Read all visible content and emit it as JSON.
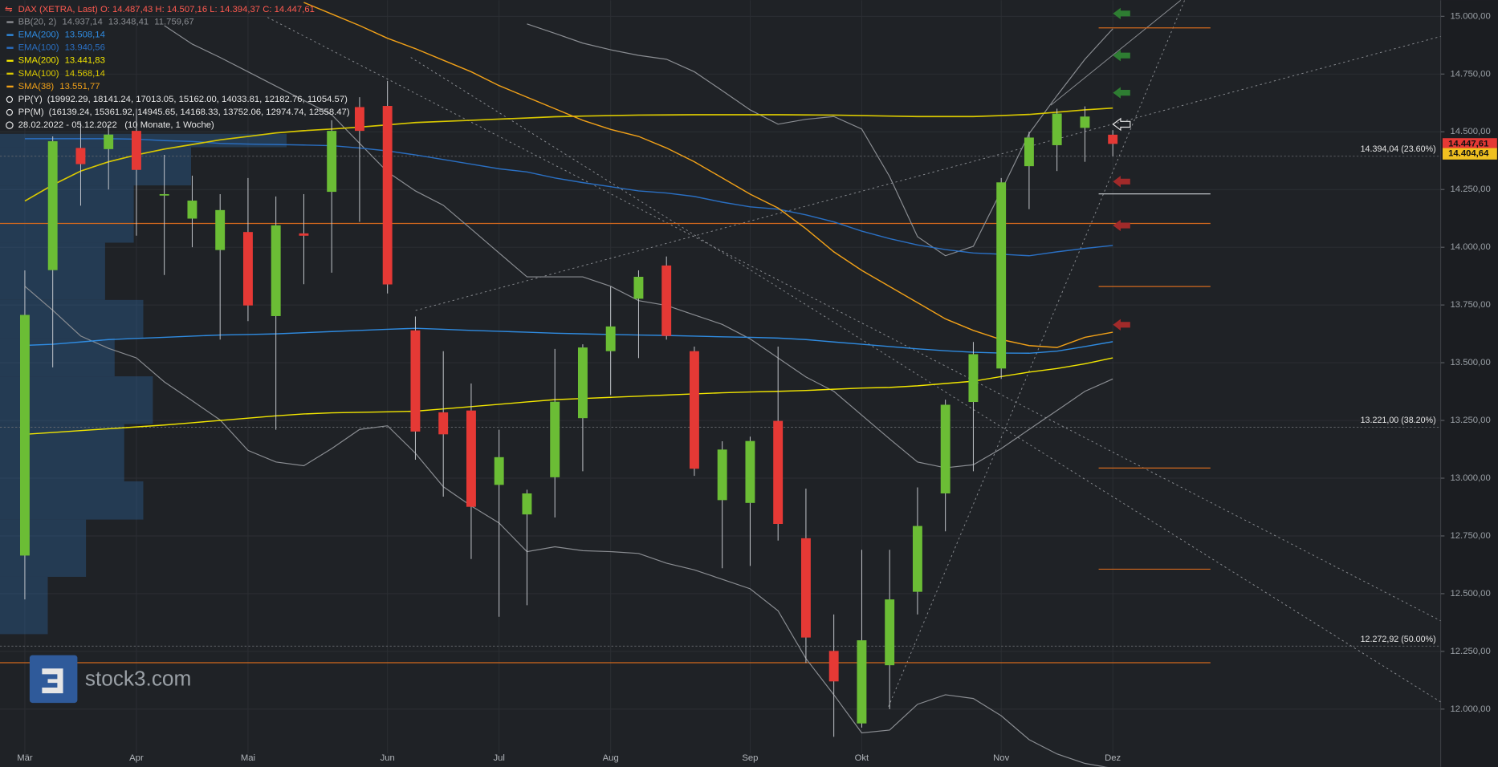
{
  "chart_data": {
    "type": "candlestick",
    "header": {
      "symbol": "DAX (XETRA, Last)",
      "ohlc": "O: 14.487,43  H: 14.507,16  L: 14.394,37  C: 14.447,61"
    },
    "pivots": [
      {
        "name": "PP(Y)",
        "values_text": "(19992.29, 18141.24, 17013.05, 15162.00, 14033.81, 12182.76, 11054.57)"
      },
      {
        "name": "PP(M)",
        "values_text": "(16139.24, 15361.92, 14945.65, 14168.33, 13752.06, 12974.74, 12558.47)"
      }
    ],
    "period": {
      "range": "28.02.2022 - 05.12.2022",
      "span": "(10 Monate, 1 Woche)"
    },
    "logo": "stock3.com",
    "categories": [
      "Mär",
      null,
      null,
      null,
      "Apr",
      null,
      null,
      null,
      "Mai",
      null,
      null,
      null,
      null,
      "Jun",
      null,
      null,
      null,
      "Jul",
      null,
      null,
      null,
      "Aug",
      null,
      null,
      null,
      null,
      "Sep",
      null,
      null,
      null,
      "Okt",
      null,
      null,
      null,
      null,
      "Nov",
      null,
      null,
      null,
      "Dez"
    ],
    "open": [
      12665,
      13901,
      14430,
      14425,
      14504,
      14227,
      14124,
      13988,
      14066,
      13702,
      14060,
      14240,
      14607,
      14612,
      13640,
      13285,
      13293,
      12971,
      12843,
      13004,
      13260,
      13550,
      13777,
      13921,
      13550,
      12905,
      12893,
      13248,
      12740,
      12252,
      11938,
      12190,
      12508,
      12934,
      13330,
      13475,
      14351,
      14442,
      14517,
      14487.43
    ],
    "high": [
      13900,
      14480,
      14540,
      14530,
      14600,
      14400,
      14310,
      14230,
      14300,
      14220,
      14230,
      14550,
      14650,
      14720,
      13700,
      13550,
      13410,
      13210,
      12950,
      13560,
      13580,
      13830,
      13900,
      13960,
      13570,
      13160,
      13180,
      13570,
      12955,
      12410,
      12690,
      12690,
      12960,
      13340,
      13590,
      14300,
      14500,
      14600,
      14610,
      14507.16
    ],
    "low": [
      12475,
      13480,
      14180,
      14250,
      14050,
      13880,
      14000,
      13600,
      13680,
      13210,
      13840,
      13890,
      14110,
      13800,
      13080,
      12920,
      12650,
      12400,
      12450,
      12830,
      13030,
      13360,
      13520,
      13600,
      13010,
      12610,
      12620,
      12730,
      12200,
      11880,
      11920,
      12000,
      12410,
      12770,
      13030,
      13430,
      14165,
      14330,
      14370,
      14394.37
    ],
    "close": [
      13707,
      14459,
      14360,
      14488,
      14335,
      14230,
      14202,
      14161,
      13748,
      14095,
      14050,
      14504,
      14504,
      13839,
      13202,
      13190,
      12876,
      13091,
      12934,
      13331,
      13566,
      13657,
      13872,
      13616,
      13041,
      13124,
      13161,
      12802,
      12310,
      12120,
      12298,
      12475,
      12793,
      13318,
      13537,
      14281,
      14475,
      14579,
      14566,
      14447.61
    ],
    "up_color": "#6bbd35",
    "down_color": "#e53935",
    "indicators": [
      {
        "name": "BB(20, 2)",
        "color": "#8a8d92",
        "bands": [
          {
            "value_label": "14.937,14",
            "values": [
              null,
              null,
              null,
              null,
              null,
              null,
              null,
              null,
              null,
              null,
              null,
              null,
              null,
              null,
              null,
              null,
              null,
              null,
              14967,
              14926,
              14884,
              14855,
              14831,
              14814,
              14760,
              14678,
              14595,
              14533,
              14554,
              14566,
              14512,
              14306,
              14046,
              13963,
              14004,
              14244,
              14492,
              14657,
              14814,
              14946
            ]
          },
          {
            "value_label": "13.348,41",
            "values": [
              null,
              null,
              null,
              null,
              null,
              14960,
              14880,
              14822,
              14760,
              14698,
              14636,
              14574,
              14450,
              14326,
              14244,
              14182,
              14079,
              13975,
              13872,
              13872,
              13872,
              13831,
              13769,
              13748,
              13707,
              13666,
              13603,
              13521,
              13438,
              13376,
              13273,
              13170,
              13070,
              13045,
              13058,
              13128,
              13211,
              13293,
              13376,
              13430
            ]
          },
          {
            "value_label": "11.759,67",
            "values": [
              13831,
              13727,
              13616,
              13562,
              13521,
              13417,
              13335,
              13252,
              13120,
              13070,
              13054,
              13128,
              13211,
              13227,
              13108,
              12963,
              12880,
              12806,
              12682,
              12703,
              12686,
              12682,
              12674,
              12632,
              12603,
              12562,
              12521,
              12426,
              12219,
              12062,
              11897,
              11909,
              12021,
              12062,
              12046,
              11971,
              11868,
              11806,
              11765,
              11744
            ]
          }
        ]
      },
      {
        "name": "EMA(200)",
        "value_label": "13.508,14",
        "color": "#2f8be0",
        "values": [
          13575,
          13580,
          13590,
          13600,
          13605,
          13610,
          13615,
          13620,
          13622,
          13625,
          13630,
          13635,
          13640,
          13645,
          13649,
          13645,
          13640,
          13636,
          13632,
          13628,
          13625,
          13622,
          13620,
          13618,
          13615,
          13612,
          13610,
          13607,
          13600,
          13590,
          13580,
          13570,
          13560,
          13552,
          13545,
          13542,
          13541,
          13550,
          13570,
          13591
        ]
      },
      {
        "name": "EMA(100)",
        "value_label": "13.940,56",
        "color": "#2a6fc2",
        "values": [
          14470,
          14470,
          14470,
          14470,
          14468,
          14462,
          14458,
          14450,
          14447,
          14445,
          14443,
          14440,
          14430,
          14417,
          14400,
          14380,
          14360,
          14340,
          14326,
          14300,
          14280,
          14262,
          14244,
          14235,
          14220,
          14195,
          14175,
          14165,
          14140,
          14110,
          14070,
          14037,
          14010,
          13990,
          13975,
          13970,
          13963,
          13980,
          13995,
          14008
        ]
      },
      {
        "name": "SMA(200)",
        "value_label": "13.441,83",
        "color": "#f2e600",
        "values": [
          13190,
          13198,
          13206,
          13214,
          13222,
          13230,
          13240,
          13250,
          13260,
          13270,
          13278,
          13283,
          13285,
          13287,
          13290,
          13300,
          13310,
          13320,
          13330,
          13340,
          13345,
          13350,
          13355,
          13360,
          13365,
          13370,
          13373,
          13376,
          13380,
          13385,
          13390,
          13393,
          13400,
          13410,
          13420,
          13440,
          13459,
          13475,
          13495,
          13521
        ]
      },
      {
        "name": "SMA(100)",
        "value_label": "14.568,14",
        "color": "#d9c800",
        "values": [
          14200,
          14270,
          14330,
          14370,
          14400,
          14425,
          14445,
          14465,
          14480,
          14495,
          14505,
          14512,
          14520,
          14530,
          14540,
          14545,
          14550,
          14555,
          14560,
          14565,
          14568,
          14570,
          14572,
          14573,
          14574,
          14574,
          14574,
          14574,
          14573,
          14572,
          14570,
          14568,
          14566,
          14566,
          14566,
          14570,
          14575,
          14585,
          14595,
          14603
        ]
      },
      {
        "name": "SMA(38)",
        "value_label": "13.551,77",
        "color": "#f0a018",
        "values": [
          null,
          null,
          null,
          null,
          null,
          null,
          null,
          null,
          null,
          null,
          15060,
          15010,
          14960,
          14905,
          14860,
          14810,
          14760,
          14700,
          14650,
          14600,
          14550,
          14510,
          14480,
          14430,
          14370,
          14300,
          14230,
          14170,
          14080,
          13980,
          13900,
          13830,
          13760,
          13690,
          13640,
          13600,
          13574,
          13566,
          13610,
          13632
        ]
      }
    ],
    "fib_levels": [
      {
        "value": 14394.04,
        "label": "14.394,04 (23.60%)"
      },
      {
        "value": 13221.0,
        "label": "13.221,00 (38.20%)"
      },
      {
        "value": 12272.92,
        "label": "12.272,92 (50.00%)"
      }
    ],
    "long_levels": [
      {
        "value": 14103,
        "color": "#d2691e"
      },
      {
        "value": 12201,
        "color": "#d2691e"
      }
    ],
    "short_levels": [
      {
        "value": 14950,
        "color": "#d2691e"
      },
      {
        "value": 14231,
        "color": "#cfd2d6"
      },
      {
        "value": 13830,
        "color": "#d2691e"
      },
      {
        "value": 13044,
        "color": "#d2691e"
      },
      {
        "value": 12606,
        "color": "#d2691e"
      }
    ],
    "price_markers": [
      {
        "value": 14447.61,
        "label": "14.447,61",
        "color": "#e53935"
      },
      {
        "value": 14404.64,
        "label": "14.404,64",
        "color": "#f0c020"
      }
    ],
    "ylim": [
      11750,
      15070
    ],
    "yticks": [
      {
        "value": 12000,
        "label": "12.000,00"
      },
      {
        "value": 12250,
        "label": "12.250,00"
      },
      {
        "value": 12500,
        "label": "12.500,00"
      },
      {
        "value": 12750,
        "label": "12.750,00"
      },
      {
        "value": 13000,
        "label": "13.000,00"
      },
      {
        "value": 13250,
        "label": "13.250,00"
      },
      {
        "value": 13500,
        "label": "13.500,00"
      },
      {
        "value": 13750,
        "label": "13.750,00"
      },
      {
        "value": 14000,
        "label": "14.000,00"
      },
      {
        "value": 14250,
        "label": "14.250,00"
      },
      {
        "value": 14500,
        "label": "14.500,00"
      },
      {
        "value": 14750,
        "label": "14.750,00"
      },
      {
        "value": 15000,
        "label": "15.000,00"
      }
    ],
    "grid": true
  }
}
